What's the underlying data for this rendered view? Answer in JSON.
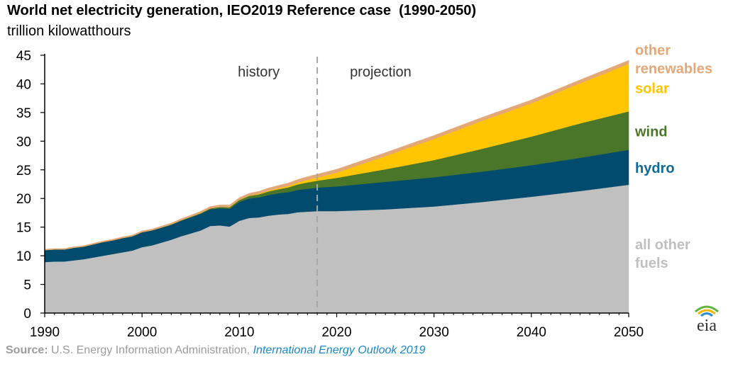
{
  "title": "World net electricity generation, IEO2019 Reference case",
  "title_years": "(1990-2050)",
  "subtitle": "trillion kilowatthours",
  "source": {
    "label": "Source:",
    "text": "U.S. Energy Information Administration,",
    "publication": "International Energy Outlook 2019"
  },
  "logo_text": "eia",
  "colors": {
    "all_other_fuels": "#c0c0c0",
    "hydro": "#004b6e",
    "wind": "#4a7629",
    "solar": "#ffc500",
    "other_renewables": "#e3a878",
    "history_line": "#a6a6a6",
    "hydro_label": "#0f6a96",
    "axis": "#000000"
  },
  "chart_data": {
    "type": "area",
    "stacked": true,
    "x": [
      1990,
      1991,
      1992,
      1993,
      1994,
      1995,
      1996,
      1997,
      1998,
      1999,
      2000,
      2001,
      2002,
      2003,
      2004,
      2005,
      2006,
      2007,
      2008,
      2009,
      2010,
      2011,
      2012,
      2013,
      2014,
      2015,
      2016,
      2017,
      2018,
      2020,
      2025,
      2030,
      2035,
      2040,
      2045,
      2050
    ],
    "series": [
      {
        "name": "all other fuels",
        "key": "all_other_fuels",
        "values": [
          8.9,
          9.0,
          9.0,
          9.2,
          9.4,
          9.7,
          10.0,
          10.3,
          10.6,
          10.9,
          11.5,
          11.8,
          12.3,
          12.8,
          13.4,
          13.9,
          14.4,
          15.2,
          15.3,
          15.1,
          16.1,
          16.6,
          16.7,
          17.0,
          17.2,
          17.3,
          17.6,
          17.7,
          17.8,
          17.8,
          18.1,
          18.6,
          19.4,
          20.3,
          21.3,
          22.4
        ]
      },
      {
        "name": "hydro",
        "key": "hydro",
        "values": [
          2.1,
          2.1,
          2.1,
          2.2,
          2.2,
          2.3,
          2.4,
          2.4,
          2.5,
          2.5,
          2.6,
          2.6,
          2.6,
          2.6,
          2.7,
          2.8,
          2.9,
          2.9,
          3.0,
          3.1,
          3.3,
          3.4,
          3.5,
          3.6,
          3.7,
          3.8,
          3.9,
          4.0,
          4.1,
          4.3,
          4.8,
          5.1,
          5.3,
          5.5,
          5.8,
          6.1
        ]
      },
      {
        "name": "wind",
        "key": "wind",
        "values": [
          0.0,
          0.0,
          0.0,
          0.0,
          0.0,
          0.0,
          0.0,
          0.0,
          0.0,
          0.0,
          0.03,
          0.04,
          0.05,
          0.06,
          0.08,
          0.1,
          0.13,
          0.17,
          0.22,
          0.27,
          0.34,
          0.44,
          0.52,
          0.64,
          0.71,
          0.83,
          0.96,
          1.1,
          1.2,
          1.5,
          2.2,
          3.0,
          4.0,
          5.0,
          6.0,
          6.7
        ]
      },
      {
        "name": "solar",
        "key": "solar",
        "values": [
          0.0,
          0.0,
          0.0,
          0.0,
          0.0,
          0.0,
          0.0,
          0.0,
          0.0,
          0.0,
          0.0,
          0.0,
          0.0,
          0.0,
          0.0,
          0.0,
          0.01,
          0.01,
          0.02,
          0.02,
          0.03,
          0.06,
          0.1,
          0.14,
          0.19,
          0.25,
          0.33,
          0.45,
          0.55,
          0.9,
          2.3,
          3.7,
          4.9,
          5.8,
          7.0,
          8.3
        ]
      },
      {
        "name": "other renewables",
        "key": "other_renewables",
        "values": [
          0.15,
          0.15,
          0.16,
          0.17,
          0.17,
          0.18,
          0.18,
          0.19,
          0.2,
          0.21,
          0.22,
          0.22,
          0.24,
          0.25,
          0.27,
          0.28,
          0.3,
          0.32,
          0.34,
          0.36,
          0.38,
          0.4,
          0.42,
          0.45,
          0.47,
          0.5,
          0.52,
          0.55,
          0.58,
          0.6,
          0.6,
          0.6,
          0.6,
          0.6,
          0.6,
          0.6
        ]
      }
    ],
    "series_labels": [
      {
        "key": "other_renewables",
        "lines": [
          "other",
          "renewables"
        ]
      },
      {
        "key": "solar",
        "lines": [
          "solar"
        ]
      },
      {
        "key": "wind",
        "lines": [
          "wind"
        ]
      },
      {
        "key": "hydro",
        "lines": [
          "hydro"
        ]
      },
      {
        "key": "all_other_fuels",
        "lines": [
          "all other",
          "fuels"
        ]
      }
    ],
    "xlim": [
      1990,
      2050
    ],
    "ylim": [
      0,
      45
    ],
    "xticks": [
      1990,
      2000,
      2010,
      2020,
      2030,
      2040,
      2050
    ],
    "yticks": [
      0,
      5,
      10,
      15,
      20,
      25,
      30,
      35,
      40,
      45
    ],
    "history_end_year": 2018,
    "annotations": {
      "history": "history",
      "projection": "projection"
    },
    "grid": false,
    "legend": "direct labels at right"
  }
}
